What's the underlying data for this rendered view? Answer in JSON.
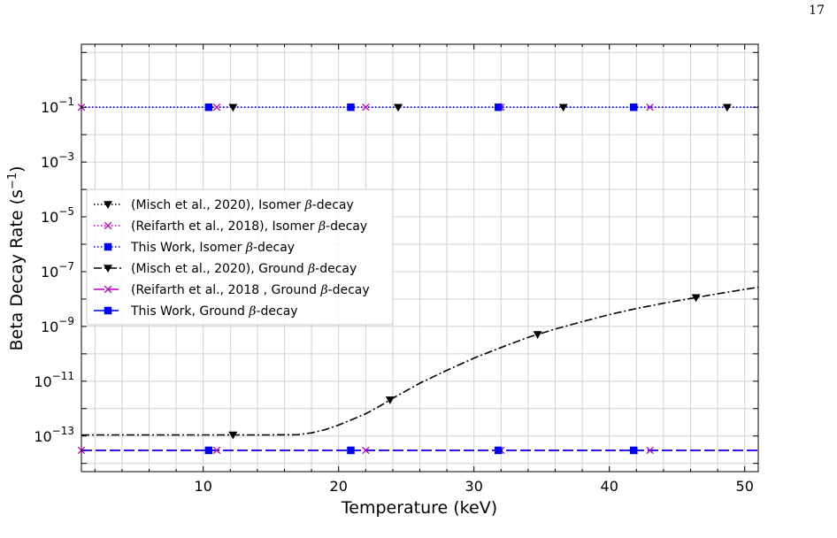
{
  "page": {
    "number": "17"
  },
  "chart_data": {
    "type": "line",
    "xlabel": "Temperature (keV)",
    "ylabel_text": "Beta Decay Rate (s",
    "ylabel_sup": "−1",
    "ylabel_close": ")",
    "xlim": [
      1,
      51
    ],
    "ylim_log10": [
      -14.3,
      1.3
    ],
    "y_scale": "log",
    "grid": true,
    "legend_location": "center-left",
    "x_ticks": [
      10,
      20,
      30,
      40,
      50
    ],
    "y_ticks_exponents": [
      -1,
      -3,
      -5,
      -7,
      -9,
      -11,
      -13
    ],
    "series": [
      {
        "name_prefix": "(Misch et al., 2020), Isomer ",
        "name_suffix": "-decay",
        "color": "#000000",
        "dash": "dotted",
        "marker": "triangle-down",
        "points": [
          [
            1,
            0.1
          ],
          [
            51,
            0.1
          ]
        ],
        "markers_x": [
          12.2,
          24.4,
          36.6,
          48.7
        ]
      },
      {
        "name_prefix": "(Reifarth et al., 2018), Isomer ",
        "name_suffix": "-decay",
        "color": "#bf00bf",
        "dash": "dotted",
        "marker": "x",
        "points": [
          [
            1,
            0.1
          ],
          [
            51,
            0.1
          ]
        ],
        "markers_x": [
          1.0,
          11.0,
          22.0,
          32.0,
          43.0
        ]
      },
      {
        "name_prefix": "This Work, Isomer ",
        "name_suffix": "-decay",
        "color": "#0000ff",
        "dash": "dotted",
        "marker": "square",
        "points": [
          [
            1,
            0.1
          ],
          [
            51,
            0.1
          ]
        ],
        "markers_x": [
          10.4,
          20.9,
          31.8,
          41.8
        ]
      },
      {
        "name_prefix": "(Misch et al., 2020), Ground ",
        "name_suffix": "-decay",
        "color": "#000000",
        "dash": "dashdot",
        "marker": "triangle-down",
        "points": [
          [
            1,
            1.1e-13
          ],
          [
            10,
            1.1e-13
          ],
          [
            15,
            1.1e-13
          ],
          [
            17,
            1.12e-13
          ],
          [
            18,
            1.3e-13
          ],
          [
            19,
            1.7e-13
          ],
          [
            20,
            2.5e-13
          ],
          [
            21,
            4e-13
          ],
          [
            22,
            6.5e-13
          ],
          [
            23,
            1.2e-12
          ],
          [
            24,
            2.4e-12
          ],
          [
            25,
            4.5e-12
          ],
          [
            26,
            8.5e-12
          ],
          [
            28,
            2.5e-11
          ],
          [
            30,
            7e-11
          ],
          [
            32,
            1.7e-10
          ],
          [
            34,
            4e-10
          ],
          [
            36,
            8e-10
          ],
          [
            38,
            1.5e-09
          ],
          [
            40,
            2.7e-09
          ],
          [
            42,
            4.5e-09
          ],
          [
            44,
            7e-09
          ],
          [
            46,
            1.05e-08
          ],
          [
            48,
            1.55e-08
          ],
          [
            51,
            2.7e-08
          ]
        ],
        "markers_x": [
          12.2,
          23.8,
          34.7,
          46.4
        ]
      },
      {
        "name_prefix": "(Reifarth et al., 2018 , Ground ",
        "name_suffix": "-decay",
        "color": "#bf00bf",
        "dash": "longdash",
        "marker": "x",
        "points": [
          [
            1,
            3e-14
          ],
          [
            51,
            3e-14
          ]
        ],
        "markers_x": [
          1.0,
          11.0,
          22.0,
          32.0,
          43.0
        ]
      },
      {
        "name_prefix": "This Work, Ground ",
        "name_suffix": "-decay",
        "color": "#0000ff",
        "dash": "longdash",
        "marker": "square",
        "points": [
          [
            1,
            3e-14
          ],
          [
            51,
            3e-14
          ]
        ],
        "markers_x": [
          10.4,
          20.9,
          31.8,
          41.8
        ]
      }
    ]
  }
}
